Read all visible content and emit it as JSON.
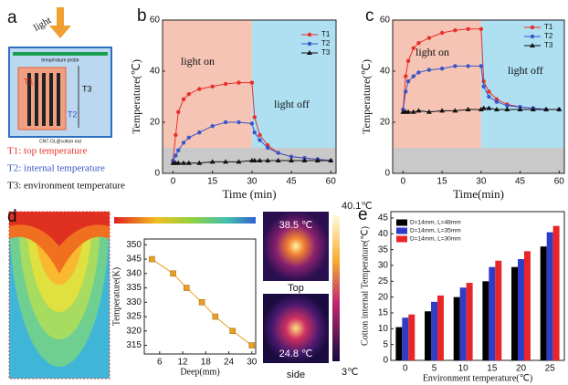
{
  "diagram_a": {
    "panel": "a",
    "light": "light",
    "probe": "temperature probe",
    "rod": "CNT-OL@cotton rod",
    "T1": "T1",
    "T2": "T2",
    "T3": "T3",
    "legend": [
      {
        "text": "T1: top temperature",
        "color": "#e8302a"
      },
      {
        "text": "T2: internal temperature",
        "color": "#3b55c8"
      },
      {
        "text": "T3: environment temperature",
        "color": "#111111"
      }
    ]
  },
  "thermal_images": {
    "max": "40.1℃",
    "min": "3℃",
    "top_value": "38.5 ℃",
    "top": "Top",
    "side_value": "24.8 ℃",
    "side": "side"
  },
  "chart_data": [
    {
      "type": "line",
      "panel": "b",
      "xlabel": "Time (min)",
      "ylabel": "Temperature(℃)",
      "annotations": [
        "light on",
        "light off"
      ],
      "xlim": [
        -4,
        62
      ],
      "ylim": [
        0,
        60
      ],
      "xticks": [
        0,
        15,
        30,
        45,
        60
      ],
      "yticks": [
        0,
        20,
        40,
        60
      ],
      "regions": [
        {
          "xrange": [
            -4,
            30
          ],
          "yrange": [
            10,
            60
          ],
          "color": "#f5c4b4"
        },
        {
          "xrange": [
            30,
            62
          ],
          "yrange": [
            10,
            60
          ],
          "color": "#aee0f2"
        },
        {
          "xrange": [
            -4,
            62
          ],
          "yrange": [
            0,
            10
          ],
          "color": "#c9c9c9"
        }
      ],
      "x": [
        0,
        1,
        2,
        4,
        6,
        10,
        15,
        20,
        25,
        30,
        31,
        33,
        36,
        40,
        45,
        50,
        55,
        60
      ],
      "series": [
        {
          "name": "T1",
          "color": "#e8302a",
          "marker": "circle",
          "values": [
            5,
            15,
            24,
            29,
            31,
            33,
            34,
            35,
            35.5,
            35.5,
            22,
            15,
            11,
            8,
            6.5,
            6,
            5.5,
            5
          ]
        },
        {
          "name": "T2",
          "color": "#3b55c8",
          "marker": "circle",
          "values": [
            5,
            7,
            9,
            12,
            14,
            16,
            18.5,
            20,
            20,
            19.5,
            16,
            13,
            10,
            8,
            6.5,
            6,
            5.5,
            5
          ]
        },
        {
          "name": "T3",
          "color": "#111111",
          "marker": "triangle",
          "values": [
            4,
            4,
            4,
            4,
            4,
            4,
            4.5,
            4.5,
            4.5,
            5,
            5,
            5,
            5,
            5,
            5,
            5,
            5,
            5
          ]
        }
      ]
    },
    {
      "type": "line",
      "panel": "c",
      "xlabel": "Time(min)",
      "ylabel": "Temperature(℃)",
      "annotations": [
        "light on",
        "light off"
      ],
      "xlim": [
        -4,
        62
      ],
      "ylim": [
        0,
        60
      ],
      "xticks": [
        0,
        15,
        30,
        45,
        60
      ],
      "yticks": [
        0,
        20,
        40,
        60
      ],
      "regions": [
        {
          "xrange": [
            -4,
            30
          ],
          "yrange": [
            10,
            60
          ],
          "color": "#f5c4b4"
        },
        {
          "xrange": [
            30,
            62
          ],
          "yrange": [
            10,
            60
          ],
          "color": "#aee0f2"
        },
        {
          "xrange": [
            -4,
            62
          ],
          "yrange": [
            0,
            10
          ],
          "color": "#c9c9c9"
        }
      ],
      "x": [
        0,
        1,
        2,
        4,
        6,
        10,
        15,
        20,
        25,
        30,
        31,
        33,
        36,
        40,
        45,
        50,
        55,
        60
      ],
      "series": [
        {
          "name": "T1",
          "color": "#e8302a",
          "marker": "circle",
          "values": [
            25,
            38,
            44,
            49,
            51,
            53,
            55,
            56,
            56.5,
            56.5,
            36,
            32,
            29,
            27,
            26,
            25.5,
            25,
            25
          ]
        },
        {
          "name": "T2",
          "color": "#3b55c8",
          "marker": "circle",
          "values": [
            25,
            32,
            36,
            38,
            39.5,
            40.5,
            41,
            42,
            42,
            42,
            34,
            30,
            28,
            26.5,
            26,
            25.5,
            25,
            25
          ]
        },
        {
          "name": "T3",
          "color": "#111111",
          "marker": "triangle",
          "values": [
            24,
            24,
            24,
            24,
            24.5,
            24,
            24.5,
            24.5,
            25,
            25,
            25.5,
            25.5,
            25,
            25,
            25,
            25,
            25,
            25
          ]
        }
      ]
    },
    {
      "type": "line",
      "panel": "d",
      "xlabel": "Deep(mm)",
      "ylabel": "Temperature(K)",
      "xlim": [
        2,
        31
      ],
      "ylim": [
        312,
        352
      ],
      "xticks": [
        6,
        12,
        18,
        24,
        30
      ],
      "yticks": [
        315,
        320,
        325,
        330,
        335,
        340,
        345,
        350
      ],
      "x": [
        4,
        9.5,
        13,
        17,
        20.5,
        25,
        30
      ],
      "series": [
        {
          "color": "#e8a020",
          "marker": "square",
          "values": [
            345,
            340,
            335,
            330,
            325,
            320,
            315
          ]
        }
      ]
    },
    {
      "type": "bar",
      "panel": "e",
      "xlabel": "Environment  temperature(℃)",
      "ylabel": "Cotton internal Temperature(℃)",
      "categories": [
        0,
        5,
        10,
        15,
        20,
        25
      ],
      "ylim": [
        0,
        47
      ],
      "yticks": [
        0,
        5,
        10,
        15,
        20,
        25,
        30,
        35,
        40,
        45
      ],
      "series": [
        {
          "name": "D=14mm, L=48mm",
          "color": "#000000",
          "values": [
            10.5,
            15.5,
            20,
            25,
            29.5,
            36
          ]
        },
        {
          "name": "D=14mm, L=35mm",
          "color": "#2f3cc6",
          "values": [
            13.5,
            18.5,
            23,
            29.5,
            32,
            40.5
          ]
        },
        {
          "name": "D=14mm, L=30mm",
          "color": "#e8262a",
          "values": [
            14.5,
            20.5,
            24.5,
            31.5,
            34.5,
            42.5
          ]
        }
      ]
    }
  ]
}
